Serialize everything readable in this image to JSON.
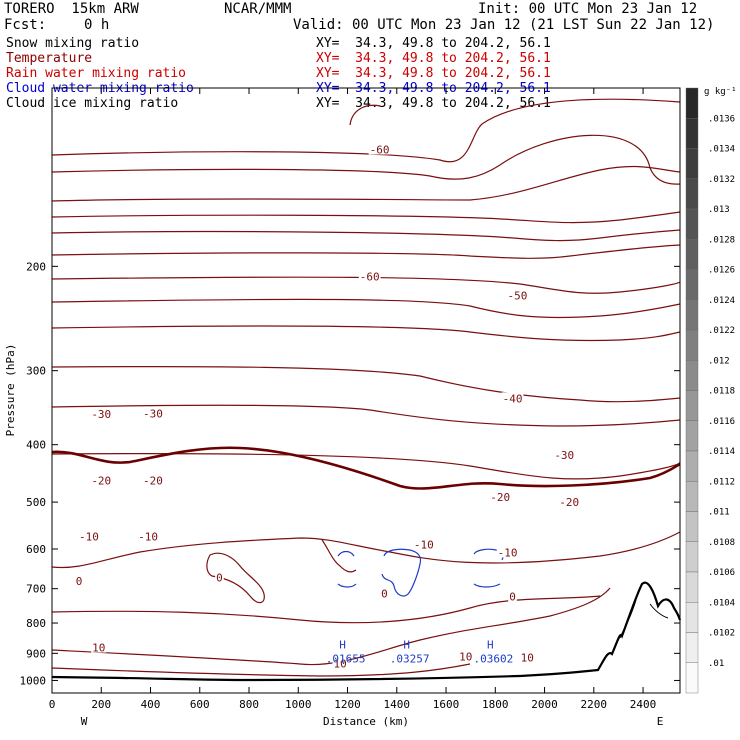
{
  "header": {
    "model": "TORERO  15km ARW",
    "center": "NCAR/MMM",
    "init": "Init: 00 UTC Mon 23 Jan 12",
    "fcst_label": "Fcst:",
    "fcst_value": "0 h",
    "valid": "Valid: 00 UTC Mon 23 Jan 12 (21 LST Sun 22 Jan 12)"
  },
  "fields": [
    {
      "label": "Snow mixing ratio",
      "color": "#000000",
      "xy": "XY=  34.3, 49.8 to 204.2, 56.1",
      "xy_color": "#000000"
    },
    {
      "label": "Temperature",
      "color": "#8b0000",
      "xy": "XY=  34.3, 49.8 to 204.2, 56.1",
      "xy_color": "#cc0000"
    },
    {
      "label": "Rain water mixing ratio",
      "color": "#cc0000",
      "xy": "XY=  34.3, 49.8 to 204.2, 56.1",
      "xy_color": "#cc0000"
    },
    {
      "label": "Cloud water mixing ratio",
      "color": "#0000cc",
      "xy": "XY=  34.3, 49.8 to 204.2, 56.1",
      "xy_color": "#0000cc"
    },
    {
      "label": "Cloud ice mixing ratio",
      "color": "#000000",
      "xy": "XY=  34.3, 49.8 to 204.2, 56.1",
      "xy_color": "#000000"
    }
  ],
  "chart_data": {
    "type": "contour",
    "xlabel": "Distance (km)",
    "ylabel": "Pressure (hPa)",
    "x_ticks": [
      "0",
      "200",
      "400",
      "600",
      "800",
      "1000",
      "1200",
      "1400",
      "1600",
      "1800",
      "2000",
      "2200",
      "2400"
    ],
    "x_tick_values": [
      0,
      200,
      400,
      600,
      800,
      1000,
      1200,
      1400,
      1600,
      1800,
      2000,
      2200,
      2400
    ],
    "xlim": [
      0,
      2550
    ],
    "y_ticks": [
      "200",
      "300",
      "400",
      "500",
      "600",
      "700",
      "800",
      "900",
      "1000"
    ],
    "y_tick_values": [
      200,
      300,
      400,
      500,
      600,
      700,
      800,
      900,
      1000
    ],
    "ylim": [
      100,
      1050
    ],
    "y_scale": "log",
    "x_end_labels": {
      "left": "W",
      "right": "E"
    },
    "temperature_labels": [
      {
        "text": "-60",
        "x": 1290,
        "p": 208
      },
      {
        "text": "-60",
        "x": 1330,
        "p": 127
      },
      {
        "text": "-50",
        "x": 1890,
        "p": 224
      },
      {
        "text": "-40",
        "x": 1870,
        "p": 334
      },
      {
        "text": "-30",
        "x": 200,
        "p": 355
      },
      {
        "text": "-30",
        "x": 410,
        "p": 354
      },
      {
        "text": "-30",
        "x": 2080,
        "p": 416
      },
      {
        "text": "-20",
        "x": 200,
        "p": 460
      },
      {
        "text": "-20",
        "x": 410,
        "p": 460
      },
      {
        "text": "-20",
        "x": 1820,
        "p": 490
      },
      {
        "text": "-20",
        "x": 2100,
        "p": 500
      },
      {
        "text": "-10",
        "x": 150,
        "p": 572
      },
      {
        "text": "-10",
        "x": 390,
        "p": 572
      },
      {
        "text": "-10",
        "x": 1510,
        "p": 590
      },
      {
        "text": "-10",
        "x": 1850,
        "p": 608
      },
      {
        "text": "0",
        "x": 110,
        "p": 679
      },
      {
        "text": "0",
        "x": 680,
        "p": 670
      },
      {
        "text": "0",
        "x": 1350,
        "p": 713
      },
      {
        "text": "0",
        "x": 1870,
        "p": 722
      },
      {
        "text": "10",
        "x": 190,
        "p": 880
      },
      {
        "text": "10",
        "x": 1170,
        "p": 937
      },
      {
        "text": "10",
        "x": 1680,
        "p": 911
      },
      {
        "text": "10",
        "x": 1930,
        "p": 914
      }
    ],
    "cloud_water_maxima": [
      {
        "marker": "H",
        "value": ".01655",
        "x": 1180,
        "p": 857
      },
      {
        "marker": "H",
        "value": ".03257",
        "x": 1440,
        "p": 857
      },
      {
        "marker": "H",
        "value": ".03602",
        "x": 1780,
        "p": 857
      }
    ],
    "colorbar": {
      "unit": "g kg⁻¹",
      "labels": [
        ".0136",
        ".0134",
        ".0132",
        ".013",
        ".0128",
        ".0126",
        ".0124",
        ".0122",
        ".012",
        ".0118",
        ".0116",
        ".0114",
        ".0112",
        ".011",
        ".0108",
        ".0106",
        ".0104",
        ".0102",
        ".01"
      ]
    }
  }
}
